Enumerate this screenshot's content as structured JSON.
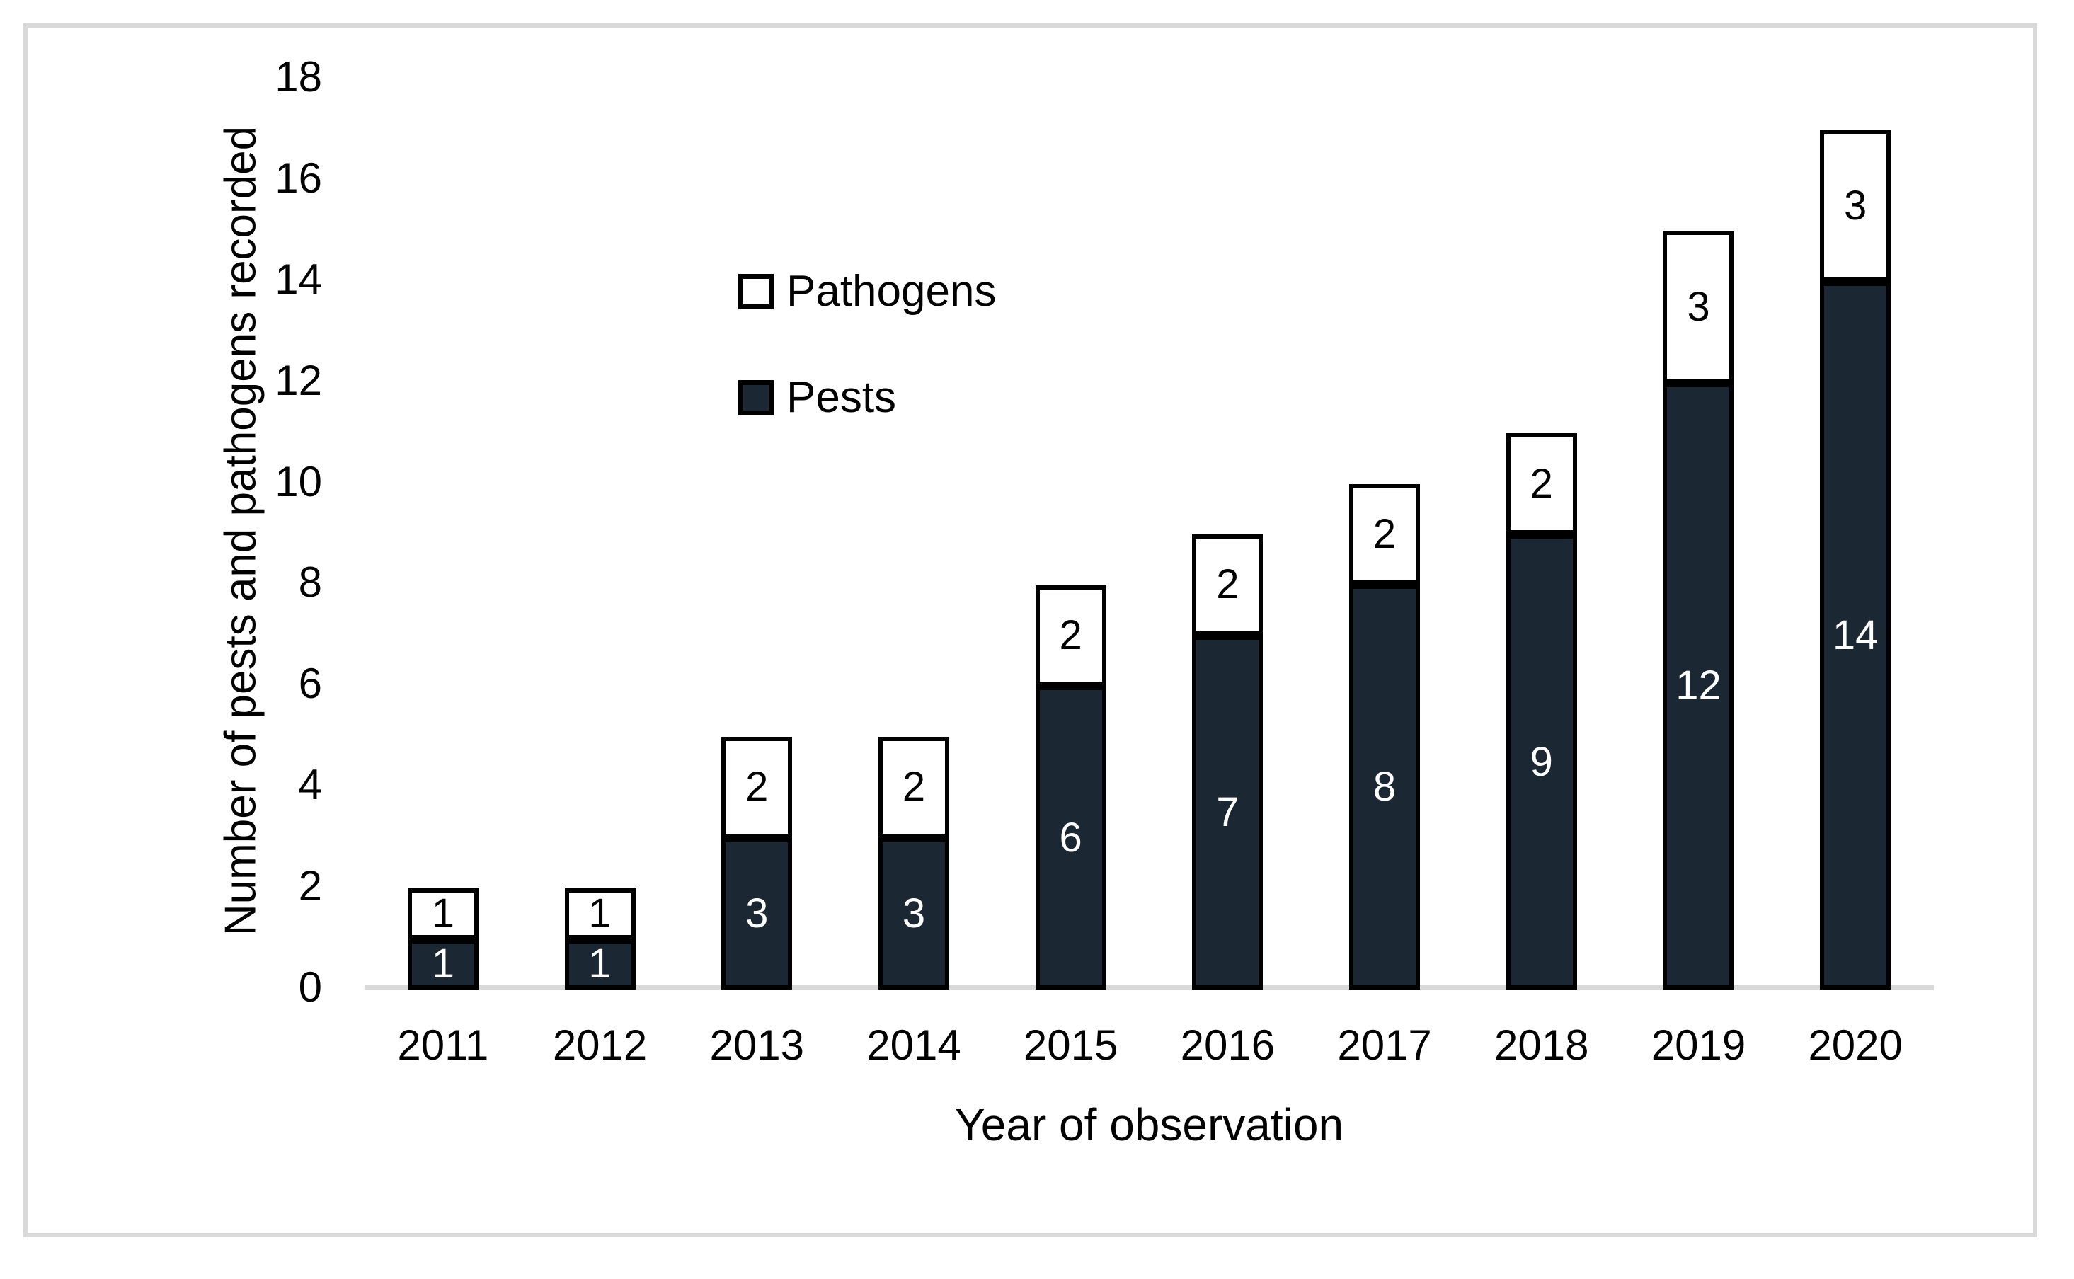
{
  "figure": {
    "background_color": "#ffffff",
    "border_color": "#d9d9d9",
    "axis_line_color": "#d9d9d9",
    "bar_border_color": "#000000"
  },
  "chart_data": {
    "type": "bar",
    "stacked": true,
    "title": "",
    "xlabel": "Year of observation",
    "ylabel": "Number of pests and pathogens recorded",
    "categories": [
      "2011",
      "2012",
      "2013",
      "2014",
      "2015",
      "2016",
      "2017",
      "2018",
      "2019",
      "2020"
    ],
    "series": [
      {
        "name": "Pests",
        "color": "#1b2732",
        "label_color": "#ffffff",
        "stack_position": "bottom",
        "values": [
          1,
          1,
          3,
          3,
          6,
          7,
          8,
          9,
          12,
          14
        ]
      },
      {
        "name": "Pathogens",
        "color": "#ffffff",
        "label_color": "#000000",
        "stack_position": "top",
        "values": [
          1,
          1,
          2,
          2,
          2,
          2,
          2,
          2,
          3,
          3
        ]
      }
    ],
    "totals": [
      2,
      2,
      5,
      5,
      8,
      9,
      10,
      11,
      15,
      17
    ],
    "ylim": [
      0,
      18
    ],
    "ytick_step": 2,
    "yticks": [
      "0",
      "2",
      "4",
      "6",
      "8",
      "10",
      "12",
      "14",
      "16",
      "18"
    ],
    "grid": false,
    "data_labels": true,
    "legend_position": "inside-upper-left"
  },
  "legend": {
    "items": [
      {
        "label": "Pathogens",
        "color": "#ffffff"
      },
      {
        "label": "Pests",
        "color": "#1b2732"
      }
    ]
  }
}
